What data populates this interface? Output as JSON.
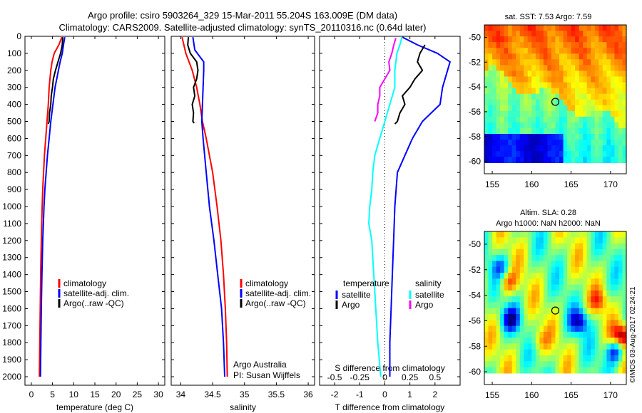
{
  "header": {
    "line1": "Argo profile: csiro 5903264_329 15-Mar-2011 55.204S 163.009E (DM data)",
    "line2": "Climatology: CARS2009. Satellite-adjusted climatology: synTS_20110316.nc (0.64d later)"
  },
  "colors": {
    "climatology": "#ff0000",
    "satellite": "#0000ff",
    "argo": "#000000",
    "sat_salinity": "#00ffff",
    "argo_salinity": "#ff00ff"
  },
  "chart_data": [
    {
      "id": "temperature",
      "type": "line",
      "xlabel": "temperature (deg C)",
      "ylabel": "",
      "xlim": [
        -1.5,
        31.5
      ],
      "ylim": [
        2050,
        0
      ],
      "x_ticks": [
        0,
        5,
        10,
        15,
        20,
        25,
        30
      ],
      "y_ticks": [
        0,
        100,
        200,
        300,
        400,
        500,
        600,
        700,
        800,
        900,
        1000,
        1100,
        1200,
        1300,
        1400,
        1500,
        1600,
        1700,
        1800,
        1900,
        2000
      ],
      "legend": [
        "climatology",
        "satellite-adj. clim.",
        "Argo(..raw -QC)"
      ],
      "legend_placement": "lower-right",
      "series": [
        {
          "name": "climatology",
          "color": "#ff0000",
          "depth": [
            5,
            50,
            100,
            150,
            200,
            300,
            400,
            500,
            600,
            700,
            800,
            900,
            1000,
            1200,
            1400,
            1600,
            1800,
            2000
          ],
          "values": [
            7.2,
            6.5,
            5.4,
            4.9,
            4.6,
            4.2,
            4.0,
            3.7,
            3.4,
            3.1,
            2.9,
            2.7,
            2.55,
            2.35,
            2.2,
            2.1,
            2.0,
            1.9
          ]
        },
        {
          "name": "satellite-adj. clim.",
          "color": "#0000ff",
          "depth": [
            5,
            50,
            100,
            150,
            200,
            300,
            400,
            500,
            600,
            700,
            800,
            900,
            1000,
            1200,
            1400,
            1600,
            1800,
            2000
          ],
          "values": [
            7.9,
            7.6,
            7.3,
            6.8,
            6.4,
            5.6,
            5.1,
            4.6,
            4.2,
            3.8,
            3.5,
            3.2,
            3.0,
            2.7,
            2.5,
            2.35,
            2.25,
            2.15
          ]
        },
        {
          "name": "Argo(..raw -QC)",
          "color": "#000000",
          "depth": [
            5,
            50,
            100,
            150,
            200,
            250,
            300,
            350,
            400,
            450,
            500,
            515
          ],
          "values": [
            7.4,
            7.3,
            6.9,
            6.3,
            5.7,
            5.2,
            5.0,
            4.7,
            4.6,
            4.3,
            4.2,
            4.0
          ]
        }
      ]
    },
    {
      "id": "salinity",
      "type": "line",
      "xlabel": "salinity",
      "ylabel": "",
      "xlim": [
        33.85,
        36.1
      ],
      "ylim": [
        2050,
        0
      ],
      "x_ticks": [
        34,
        34.5,
        35,
        35.5,
        36
      ],
      "legend": [
        "climatology",
        "satellite-adj. clim.",
        "Argo(..raw -QC)"
      ],
      "legend_placement": "lower-right",
      "annotations": [
        "Argo Australia",
        "PI: Susan Wijffels"
      ],
      "series": [
        {
          "name": "climatology",
          "color": "#ff0000",
          "depth": [
            5,
            100,
            200,
            300,
            400,
            500,
            600,
            800,
            1000,
            1200,
            1400,
            1600,
            1800,
            2000
          ],
          "values": [
            34.02,
            34.08,
            34.18,
            34.25,
            34.3,
            34.34,
            34.4,
            34.5,
            34.57,
            34.63,
            34.67,
            34.7,
            34.72,
            34.73
          ]
        },
        {
          "name": "satellite-adj. clim.",
          "color": "#0000ff",
          "depth": [
            5,
            80,
            150,
            200,
            300,
            400,
            500,
            600,
            800,
            1000,
            1200,
            1400,
            1600,
            1800,
            2000
          ],
          "values": [
            34.19,
            34.22,
            34.36,
            34.36,
            34.35,
            34.34,
            34.33,
            34.35,
            34.4,
            34.45,
            34.52,
            34.58,
            34.64,
            34.67,
            34.69
          ]
        },
        {
          "name": "Argo(..raw -QC)",
          "color": "#000000",
          "depth": [
            5,
            50,
            100,
            150,
            200,
            250,
            300,
            350,
            400,
            450,
            500,
            510
          ],
          "values": [
            34.12,
            34.11,
            34.15,
            34.25,
            34.27,
            34.25,
            34.2,
            34.22,
            34.18,
            34.2,
            34.19,
            34.21
          ]
        }
      ]
    },
    {
      "id": "difference",
      "type": "line",
      "xlabel": "T difference from climatology",
      "x2label": "S difference from climatology",
      "xlim": [
        -2.6,
        3.0
      ],
      "x2lim": [
        -0.65,
        0.75
      ],
      "ylim": [
        2050,
        0
      ],
      "x_ticks": [
        -2,
        -1,
        0,
        1,
        2
      ],
      "x2_ticks": [
        -0.5,
        -0.25,
        0,
        0.25,
        0.5
      ],
      "x2_ticklabels": [
        "-0.5",
        "-0.25",
        "0",
        "0.25",
        "0.5"
      ],
      "legend_title_t": "temperature",
      "legend_title_s": "salinity",
      "legend_t": [
        "satellite",
        "Argo"
      ],
      "legend_s": [
        "satellite",
        "Argo"
      ],
      "series": [
        {
          "name": "T satellite",
          "color": "#0000ff",
          "depth": [
            5,
            50,
            100,
            150,
            200,
            300,
            400,
            500,
            600,
            700,
            800,
            900,
            1000,
            1200,
            1400,
            1600,
            1800,
            2000
          ],
          "values": [
            0.7,
            1.3,
            2.1,
            2.6,
            2.5,
            2.3,
            2.2,
            1.5,
            1.1,
            0.8,
            0.5,
            0.45,
            0.4,
            0.35,
            0.3,
            0.25,
            0.2,
            0.2
          ]
        },
        {
          "name": "T Argo",
          "color": "#000000",
          "depth": [
            50,
            100,
            150,
            200,
            250,
            300,
            350,
            400,
            450,
            500,
            515
          ],
          "values": [
            1.6,
            1.4,
            1.3,
            1.5,
            1.2,
            1.0,
            0.7,
            0.8,
            0.6,
            0.5,
            0.4
          ]
        },
        {
          "name": "S satellite",
          "color": "#00ffff",
          "depth": [
            5,
            50,
            100,
            200,
            300,
            400,
            500,
            600,
            700,
            800,
            900,
            1000,
            1100,
            1200,
            1400,
            1600,
            1800,
            2000
          ],
          "values": [
            0.17,
            0.15,
            0.12,
            0.1,
            0.1,
            0.05,
            0.0,
            -0.05,
            -0.1,
            -0.12,
            -0.13,
            -0.15,
            -0.16,
            -0.13,
            -0.11,
            -0.09,
            -0.07,
            -0.04
          ]
        },
        {
          "name": "S Argo",
          "color": "#ff00ff",
          "depth": [
            10,
            50,
            100,
            150,
            200,
            250,
            300,
            350,
            400,
            450,
            500
          ],
          "values": [
            0.11,
            0.09,
            0.07,
            0.04,
            0.05,
            0.0,
            -0.05,
            -0.05,
            -0.07,
            -0.07,
            -0.1
          ]
        }
      ]
    },
    {
      "id": "sst_map",
      "type": "heatmap",
      "title": "sat. SST: 7.53 Argo: 7.59",
      "xlim": [
        154,
        172
      ],
      "ylim": [
        -61,
        -49
      ],
      "x_ticks": [
        155,
        160,
        165,
        170
      ],
      "y_ticks": [
        -50,
        -52,
        -54,
        -56,
        -58,
        -60
      ],
      "y_ticklabels": [
        "-50",
        "-52",
        "-54",
        "-56",
        "-58",
        "-60"
      ],
      "marker": {
        "lon": 163.0,
        "lat": -55.2
      }
    },
    {
      "id": "sla_map",
      "type": "heatmap",
      "title_line1": "Altim. SLA: 0.28",
      "title_line2": "Argo h1000: NaN h2000: NaN",
      "xlim": [
        154,
        172
      ],
      "ylim": [
        -61,
        -49
      ],
      "x_ticks": [
        155,
        160,
        165,
        170
      ],
      "y_ticks": [
        -50,
        -52,
        -54,
        -56,
        -58,
        -60
      ],
      "y_ticklabels": [
        "-50",
        "-52",
        "-54",
        "-56",
        "-58",
        "-60"
      ],
      "marker": {
        "lon": 163.0,
        "lat": -55.2
      }
    }
  ],
  "credit": "©IMOS 03-Aug-2017 02:24:21"
}
